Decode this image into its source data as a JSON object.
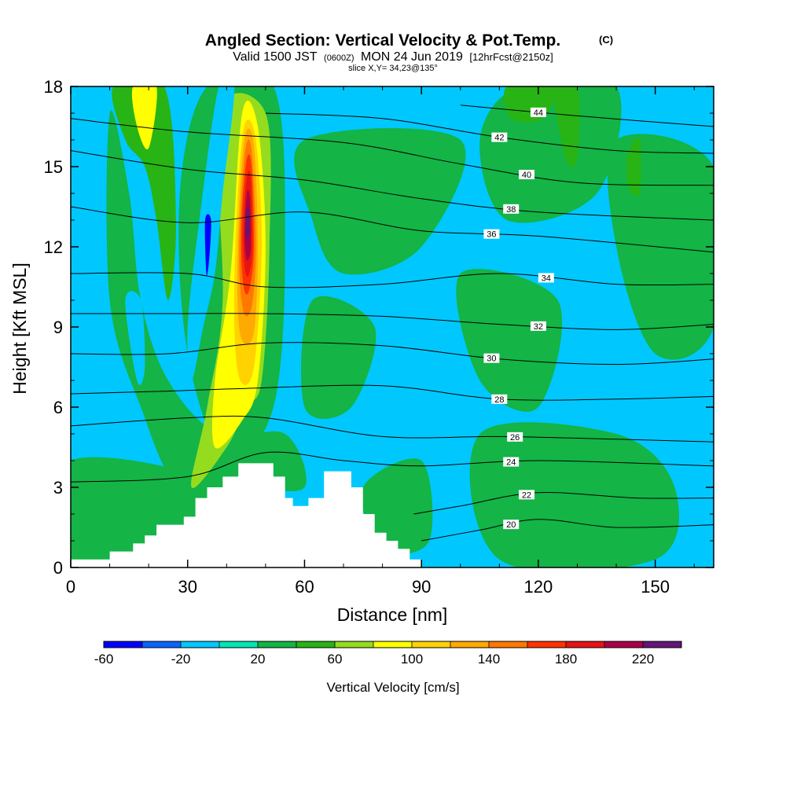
{
  "chart_data": {
    "type": "heatmap",
    "title_main": "Angled Section: Vertical Velocity & Pot.Temp.",
    "title_mark": "(C)",
    "subtitle_line1_a": "Valid 1500 JST",
    "subtitle_line1_b": "(0600Z)",
    "subtitle_line1_c": "MON 24 Jun 2019",
    "subtitle_line1_d": "[12hrFcst@2150z]",
    "subtitle_line2": "slice X,Y= 34,23@135°",
    "xlabel": "Distance [nm]",
    "ylabel": "Height [Kft MSL]",
    "xlim": [
      0,
      165
    ],
    "ylim": [
      0,
      18
    ],
    "x_ticks": [
      "0",
      "30",
      "60",
      "90",
      "120",
      "150"
    ],
    "x_tick_values": [
      0,
      30,
      60,
      90,
      120,
      150
    ],
    "y_ticks": [
      "0",
      "3",
      "6",
      "9",
      "12",
      "15",
      "18"
    ],
    "y_tick_values": [
      0,
      3,
      6,
      9,
      12,
      15,
      18
    ],
    "colorbar": {
      "label": "Vertical Velocity [cm/s]",
      "tick_labels": [
        "-60",
        "-20",
        "20",
        "60",
        "100",
        "140",
        "180",
        "220"
      ],
      "tick_values": [
        -60,
        -20,
        20,
        60,
        100,
        140,
        180,
        220
      ],
      "range": [
        -60,
        240
      ],
      "colors": [
        "#0000ff",
        "#0a64ff",
        "#00c8ff",
        "#00e6b4",
        "#14b446",
        "#28b414",
        "#96dc1e",
        "#ffff00",
        "#ffd200",
        "#ffaa00",
        "#ff7800",
        "#ff3200",
        "#e61414",
        "#aa0046",
        "#641478"
      ]
    },
    "background_color": "#00c8ff",
    "terrain_color": "#ffffff",
    "terrain": [
      [
        0,
        0.3
      ],
      [
        10,
        0.3
      ],
      [
        10,
        0.6
      ],
      [
        16,
        0.6
      ],
      [
        16,
        0.9
      ],
      [
        19,
        0.9
      ],
      [
        19,
        1.2
      ],
      [
        22,
        1.2
      ],
      [
        22,
        1.6
      ],
      [
        29,
        1.6
      ],
      [
        29,
        1.9
      ],
      [
        32,
        1.9
      ],
      [
        32,
        2.6
      ],
      [
        35,
        2.6
      ],
      [
        35,
        3.0
      ],
      [
        39,
        3.0
      ],
      [
        39,
        3.4
      ],
      [
        43,
        3.4
      ],
      [
        43,
        3.9
      ],
      [
        52,
        3.9
      ],
      [
        52,
        3.4
      ],
      [
        55,
        3.4
      ],
      [
        55,
        2.6
      ],
      [
        57,
        2.6
      ],
      [
        57,
        2.3
      ],
      [
        61,
        2.3
      ],
      [
        61,
        2.6
      ],
      [
        65,
        2.6
      ],
      [
        65,
        3.6
      ],
      [
        72,
        3.6
      ],
      [
        72,
        3.0
      ],
      [
        75,
        3.0
      ],
      [
        75,
        2.0
      ],
      [
        78,
        2.0
      ],
      [
        78,
        1.3
      ],
      [
        81,
        1.3
      ],
      [
        81,
        1.0
      ],
      [
        84,
        1.0
      ],
      [
        84,
        0.7
      ],
      [
        87,
        0.7
      ],
      [
        87,
        0.3
      ],
      [
        90,
        0.3
      ],
      [
        90,
        0
      ]
    ],
    "velocity_regions": [
      {
        "value": 20,
        "points": [
          [
            115,
            18
          ],
          [
            140,
            18
          ],
          [
            135,
            14
          ],
          [
            112,
            13
          ],
          [
            105,
            16
          ]
        ]
      },
      {
        "value": 20,
        "points": [
          [
            140,
            16
          ],
          [
            165,
            15
          ],
          [
            165,
            9
          ],
          [
            150,
            8
          ],
          [
            140,
            12
          ]
        ]
      },
      {
        "value": 20,
        "points": [
          [
            60,
            16
          ],
          [
            100,
            16
          ],
          [
            90,
            12
          ],
          [
            70,
            11
          ],
          [
            62,
            13
          ]
        ]
      },
      {
        "value": 20,
        "points": [
          [
            100,
            11
          ],
          [
            125,
            10
          ],
          [
            120,
            6
          ],
          [
            105,
            7
          ]
        ]
      },
      {
        "value": 20,
        "points": [
          [
            62,
            10
          ],
          [
            78,
            9
          ],
          [
            72,
            6
          ],
          [
            60,
            6
          ]
        ]
      },
      {
        "value": 20,
        "points": [
          [
            0,
            4
          ],
          [
            40,
            3
          ],
          [
            40,
            0.3
          ],
          [
            0,
            0.3
          ]
        ]
      },
      {
        "value": 20,
        "points": [
          [
            75,
            3
          ],
          [
            90,
            4
          ],
          [
            92,
            1
          ],
          [
            80,
            0.7
          ]
        ]
      },
      {
        "value": 20,
        "points": [
          [
            105,
            5
          ],
          [
            140,
            5
          ],
          [
            155,
            3
          ],
          [
            150,
            0.3
          ],
          [
            110,
            0.3
          ]
        ]
      },
      {
        "value": 20,
        "points": [
          [
            10,
            17
          ],
          [
            15,
            14
          ],
          [
            18,
            10
          ],
          [
            25,
            7
          ],
          [
            38,
            5
          ],
          [
            55,
            5
          ],
          [
            60,
            3
          ],
          [
            45,
            3
          ],
          [
            28,
            3
          ],
          [
            18,
            6
          ],
          [
            10,
            10
          ]
        ]
      },
      {
        "value": 20,
        "points": [
          [
            35,
            18
          ],
          [
            52,
            18
          ],
          [
            55,
            12
          ],
          [
            52,
            6
          ],
          [
            40,
            4
          ],
          [
            30,
            8
          ],
          [
            28,
            14
          ]
        ]
      },
      {
        "value": 40,
        "points": [
          [
            11,
            18
          ],
          [
            24,
            18
          ],
          [
            27,
            13
          ],
          [
            25,
            10
          ],
          [
            22,
            13
          ],
          [
            19,
            15
          ],
          [
            14,
            16
          ]
        ]
      },
      {
        "value": 40,
        "points": [
          [
            112,
            18
          ],
          [
            124,
            18
          ],
          [
            121,
            16.8
          ],
          [
            113,
            16.8
          ]
        ]
      },
      {
        "value": 40,
        "points": [
          [
            124,
            18
          ],
          [
            130,
            18
          ],
          [
            130,
            15.3
          ],
          [
            127,
            15.3
          ]
        ]
      },
      {
        "value": 40,
        "points": [
          [
            143,
            15.5
          ],
          [
            146,
            16
          ],
          [
            146,
            14
          ],
          [
            143,
            14.3
          ]
        ]
      },
      {
        "value": 60,
        "points": [
          [
            38,
            17
          ],
          [
            50,
            17
          ],
          [
            51,
            12
          ],
          [
            49,
            7
          ],
          [
            45,
            6
          ],
          [
            40,
            4.5
          ],
          [
            31,
            3
          ],
          [
            35,
            6
          ],
          [
            39,
            10
          ]
        ]
      },
      {
        "value": 80,
        "points": [
          [
            16,
            18
          ],
          [
            22,
            18
          ],
          [
            20,
            15.7
          ],
          [
            17,
            16.5
          ]
        ]
      },
      {
        "value": 80,
        "points": [
          [
            44,
            17
          ],
          [
            48,
            16.5
          ],
          [
            50,
            12
          ],
          [
            48,
            7
          ],
          [
            44,
            5.5
          ],
          [
            37,
            4.5
          ],
          [
            37,
            7
          ],
          [
            41,
            11
          ]
        ]
      },
      {
        "value": 100,
        "points": [
          [
            44.5,
            16.5
          ],
          [
            47.5,
            16
          ],
          [
            49,
            12
          ],
          [
            47,
            7.5
          ],
          [
            43.5,
            7
          ],
          [
            42,
            9
          ],
          [
            42.5,
            13
          ]
        ]
      },
      {
        "value": 120,
        "points": [
          [
            44.8,
            16.2
          ],
          [
            47,
            15.8
          ],
          [
            48,
            12
          ],
          [
            47,
            8.8
          ],
          [
            44,
            8.5
          ],
          [
            42.8,
            10
          ],
          [
            43.2,
            13.5
          ]
        ]
      },
      {
        "value": 140,
        "points": [
          [
            45,
            15.8
          ],
          [
            46.5,
            15.5
          ],
          [
            47.5,
            12
          ],
          [
            46.5,
            9.8
          ],
          [
            44.5,
            9.5
          ],
          [
            43.3,
            11
          ],
          [
            43.6,
            13.5
          ]
        ]
      },
      {
        "value": 160,
        "points": [
          [
            45.2,
            15.3
          ],
          [
            46.4,
            15
          ],
          [
            47,
            12
          ],
          [
            46,
            10.5
          ],
          [
            44.7,
            10.3
          ],
          [
            43.8,
            11.5
          ],
          [
            44,
            13.5
          ]
        ]
      },
      {
        "value": 180,
        "points": [
          [
            45.3,
            14.7
          ],
          [
            46.2,
            14.5
          ],
          [
            46.6,
            12
          ],
          [
            45.8,
            11
          ],
          [
            44.9,
            11
          ],
          [
            44.3,
            12
          ],
          [
            44.5,
            13.5
          ]
        ]
      },
      {
        "value": 200,
        "points": [
          [
            45.2,
            14
          ],
          [
            46,
            13.8
          ],
          [
            46.2,
            12
          ],
          [
            45.5,
            11.5
          ],
          [
            44.9,
            11.7
          ],
          [
            44.6,
            12.5
          ]
        ]
      },
      {
        "value": 220,
        "points": [
          [
            45.2,
            13.5
          ],
          [
            45.8,
            13.3
          ],
          [
            45.8,
            12.5
          ],
          [
            45.2,
            12.3
          ],
          [
            44.9,
            12.8
          ]
        ]
      },
      {
        "value": -20,
        "points": [
          [
            38,
            18
          ],
          [
            42,
            18
          ],
          [
            39,
            14
          ],
          [
            37,
            11
          ],
          [
            34,
            9
          ],
          [
            31,
            7
          ],
          [
            30,
            9
          ],
          [
            33,
            13
          ]
        ]
      },
      {
        "value": -20,
        "points": [
          [
            14,
            10
          ],
          [
            18,
            10
          ],
          [
            19,
            7.5
          ],
          [
            17,
            7
          ]
        ]
      },
      {
        "value": -60,
        "points": [
          [
            34.5,
            13
          ],
          [
            36,
            13
          ],
          [
            35.5,
            11.5
          ],
          [
            34.8,
            11
          ]
        ]
      }
    ],
    "isentropes": [
      {
        "theta": 20,
        "points": [
          [
            90,
            1.0
          ],
          [
            105,
            1.4
          ],
          [
            120,
            1.8
          ],
          [
            140,
            1.5
          ],
          [
            165,
            1.6
          ]
        ],
        "label_at": 113
      },
      {
        "theta": 22,
        "points": [
          [
            88,
            2.0
          ],
          [
            100,
            2.3
          ],
          [
            120,
            2.8
          ],
          [
            145,
            2.6
          ],
          [
            165,
            2.6
          ]
        ],
        "label_at": 117
      },
      {
        "theta": 24,
        "points": [
          [
            0,
            3.2
          ],
          [
            30,
            3.4
          ],
          [
            50,
            4.3
          ],
          [
            70,
            4.0
          ],
          [
            90,
            3.8
          ],
          [
            120,
            4.0
          ],
          [
            165,
            3.8
          ]
        ],
        "label_at": 113
      },
      {
        "theta": 26,
        "points": [
          [
            0,
            5.3
          ],
          [
            30,
            5.6
          ],
          [
            50,
            5.6
          ],
          [
            80,
            4.9
          ],
          [
            110,
            4.9
          ],
          [
            140,
            4.8
          ],
          [
            165,
            4.7
          ]
        ],
        "label_at": 114
      },
      {
        "theta": 28,
        "points": [
          [
            0,
            6.5
          ],
          [
            25,
            6.6
          ],
          [
            45,
            6.7
          ],
          [
            80,
            6.8
          ],
          [
            110,
            6.3
          ],
          [
            140,
            6.3
          ],
          [
            165,
            6.4
          ]
        ],
        "label_at": 110
      },
      {
        "theta": 30,
        "points": [
          [
            0,
            8.0
          ],
          [
            25,
            8.0
          ],
          [
            50,
            8.4
          ],
          [
            80,
            8.3
          ],
          [
            110,
            7.8
          ],
          [
            140,
            7.6
          ],
          [
            165,
            7.8
          ]
        ],
        "label_at": 108
      },
      {
        "theta": 32,
        "points": [
          [
            0,
            9.5
          ],
          [
            25,
            9.5
          ],
          [
            50,
            9.5
          ],
          [
            80,
            9.4
          ],
          [
            110,
            9.1
          ],
          [
            140,
            8.9
          ],
          [
            165,
            9.1
          ]
        ],
        "label_at": 120
      },
      {
        "theta": 34,
        "points": [
          [
            0,
            11.0
          ],
          [
            30,
            11.0
          ],
          [
            50,
            10.5
          ],
          [
            80,
            10.6
          ],
          [
            110,
            11.0
          ],
          [
            140,
            10.6
          ],
          [
            165,
            10.6
          ]
        ],
        "label_at": 122
      },
      {
        "theta": 36,
        "points": [
          [
            0,
            13.5
          ],
          [
            30,
            12.9
          ],
          [
            60,
            13.3
          ],
          [
            90,
            12.6
          ],
          [
            120,
            12.4
          ],
          [
            165,
            11.8
          ]
        ],
        "label_at": 108
      },
      {
        "theta": 38,
        "points": [
          [
            0,
            15.6
          ],
          [
            30,
            14.9
          ],
          [
            60,
            14.5
          ],
          [
            90,
            13.8
          ],
          [
            120,
            13.3
          ],
          [
            165,
            13.0
          ]
        ],
        "label_at": 113
      },
      {
        "theta": 40,
        "points": [
          [
            0,
            16.8
          ],
          [
            30,
            16.3
          ],
          [
            70,
            15.9
          ],
          [
            100,
            15.1
          ],
          [
            130,
            14.4
          ],
          [
            165,
            14.3
          ]
        ],
        "label_at": 117
      },
      {
        "theta": 42,
        "points": [
          [
            50,
            17.0
          ],
          [
            80,
            16.8
          ],
          [
            110,
            16.1
          ],
          [
            140,
            15.6
          ],
          [
            165,
            15.5
          ]
        ],
        "label_at": 110
      },
      {
        "theta": 44,
        "points": [
          [
            100,
            17.3
          ],
          [
            130,
            16.9
          ],
          [
            165,
            16.5
          ]
        ],
        "label_at": 120
      }
    ]
  }
}
